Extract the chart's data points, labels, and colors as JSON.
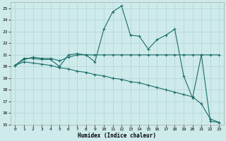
{
  "title": "",
  "xlabel": "Humidex (Indice chaleur)",
  "ylabel": "",
  "bg_color": "#ceeaea",
  "grid_color": "#b8d8d8",
  "line_color": "#1a6e6a",
  "ylim": [
    15,
    25.5
  ],
  "xlim": [
    -0.5,
    23.5
  ],
  "yticks": [
    15,
    16,
    17,
    18,
    19,
    20,
    21,
    22,
    23,
    24,
    25
  ],
  "xticks": [
    0,
    1,
    2,
    3,
    4,
    5,
    6,
    7,
    8,
    9,
    10,
    11,
    12,
    13,
    14,
    15,
    16,
    17,
    18,
    19,
    20,
    21,
    22,
    23
  ],
  "series1_x": [
    0,
    1,
    2,
    3,
    4,
    5,
    6,
    7,
    8,
    9,
    10,
    11,
    12,
    13,
    14,
    15,
    16,
    17,
    18,
    19,
    20,
    21,
    22,
    23
  ],
  "series1_y": [
    20.1,
    20.7,
    20.7,
    20.6,
    20.6,
    20.0,
    21.0,
    21.1,
    21.0,
    20.4,
    23.2,
    24.7,
    25.2,
    22.7,
    22.6,
    21.5,
    22.3,
    22.7,
    23.2,
    19.2,
    17.3,
    21.0,
    15.3,
    15.2
  ],
  "series2_x": [
    0,
    1,
    2,
    3,
    4,
    5,
    6,
    7,
    8,
    9,
    10,
    11,
    12,
    13,
    14,
    15,
    16,
    17,
    18,
    19,
    20,
    21,
    22,
    23
  ],
  "series2_y": [
    20.1,
    20.6,
    20.8,
    20.7,
    20.7,
    20.5,
    20.8,
    21.0,
    21.0,
    21.0,
    21.0,
    21.0,
    21.0,
    21.0,
    21.0,
    21.0,
    21.0,
    21.0,
    21.0,
    21.0,
    21.0,
    21.0,
    21.0,
    21.0
  ],
  "series3_x": [
    0,
    1,
    2,
    3,
    4,
    5,
    6,
    7,
    8,
    9,
    10,
    11,
    12,
    13,
    14,
    15,
    16,
    17,
    18,
    19,
    20,
    21,
    22,
    23
  ],
  "series3_y": [
    20.1,
    20.4,
    20.3,
    20.2,
    20.1,
    19.9,
    19.8,
    19.6,
    19.5,
    19.3,
    19.2,
    19.0,
    18.9,
    18.7,
    18.6,
    18.4,
    18.2,
    18.0,
    17.8,
    17.6,
    17.4,
    16.8,
    15.5,
    15.2
  ],
  "xlabel_fontsize": 5.5,
  "tick_fontsize": 4.5
}
